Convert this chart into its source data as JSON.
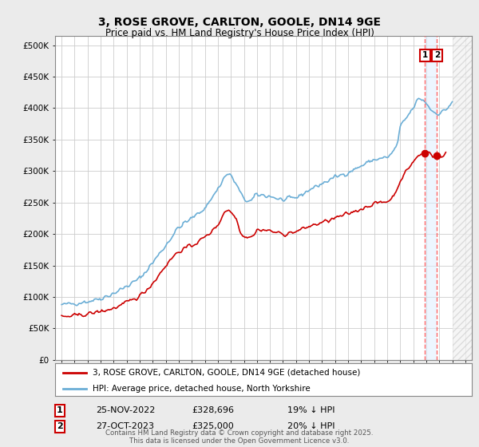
{
  "title": "3, ROSE GROVE, CARLTON, GOOLE, DN14 9GE",
  "subtitle": "Price paid vs. HM Land Registry's House Price Index (HPI)",
  "title_fontsize": 10,
  "subtitle_fontsize": 8.5,
  "ylabel_ticks": [
    "£0",
    "£50K",
    "£100K",
    "£150K",
    "£200K",
    "£250K",
    "£300K",
    "£350K",
    "£400K",
    "£450K",
    "£500K"
  ],
  "ytick_values": [
    0,
    50000,
    100000,
    150000,
    200000,
    250000,
    300000,
    350000,
    400000,
    450000,
    500000
  ],
  "ylim": [
    0,
    515000
  ],
  "xlim_start": 1994.5,
  "xlim_end": 2026.5,
  "hpi_color": "#6baed6",
  "price_color": "#cc0000",
  "dashed_line_color": "#ff6666",
  "shade_color": "#ddeeff",
  "hatch_color": "#cccccc",
  "background_color": "#ebebeb",
  "plot_bg_color": "#ffffff",
  "grid_color": "#cccccc",
  "legend_label_hpi": "HPI: Average price, detached house, North Yorkshire",
  "legend_label_price": "3, ROSE GROVE, CARLTON, GOOLE, DN14 9GE (detached house)",
  "transaction1_date": "25-NOV-2022",
  "transaction1_price": "£328,696",
  "transaction1_hpi": "19% ↓ HPI",
  "transaction1_x": 2022.9,
  "transaction2_date": "27-OCT-2023",
  "transaction2_price": "£325,000",
  "transaction2_hpi": "20% ↓ HPI",
  "transaction2_x": 2023.83,
  "footer_text": "Contains HM Land Registry data © Crown copyright and database right 2025.\nThis data is licensed under the Open Government Licence v3.0.",
  "hatch_start_x": 2025.0,
  "hpi_data_end": 2025.0,
  "price_data_end": 2024.5
}
